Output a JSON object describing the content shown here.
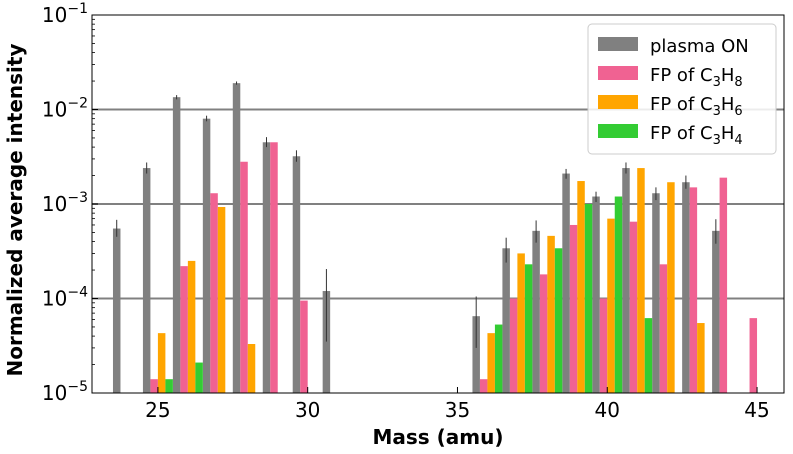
{
  "chart_data": {
    "type": "bar",
    "scale": "log",
    "xlabel": "Mass (amu)",
    "ylabel": "Normalized average intensity",
    "xlim": [
      22.8,
      45.9
    ],
    "ylim": [
      1e-05,
      0.1
    ],
    "x_ticks": [
      25,
      30,
      35,
      40,
      45
    ],
    "y_ticks": [
      {
        "value": 1e-05,
        "base": "10",
        "exp": "−5"
      },
      {
        "value": 0.0001,
        "base": "10",
        "exp": "−4"
      },
      {
        "value": 0.001,
        "base": "10",
        "exp": "−3"
      },
      {
        "value": 0.01,
        "base": "10",
        "exp": "−2"
      },
      {
        "value": 0.1,
        "base": "10",
        "exp": "−1"
      }
    ],
    "gridlines": [
      0.0001,
      0.001,
      0.01
    ],
    "bar_width": 0.25,
    "legend_position": "top-right",
    "series": [
      {
        "name": "plasma ON",
        "label_main": "plasma ON",
        "label_sub": "",
        "label_tail": "",
        "color": "#808080",
        "offset": -0.375,
        "points": [
          {
            "x": 24,
            "y": 0.00055,
            "err": [
              0.00045,
              0.00068
            ]
          },
          {
            "x": 25,
            "y": 0.0024,
            "err": [
              0.0021,
              0.00275
            ]
          },
          {
            "x": 26,
            "y": 0.0135,
            "err": [
              0.0128,
              0.0142
            ]
          },
          {
            "x": 27,
            "y": 0.008,
            "err": [
              0.0075,
              0.0086
            ]
          },
          {
            "x": 28,
            "y": 0.019,
            "err": [
              0.0183,
              0.0198
            ]
          },
          {
            "x": 29,
            "y": 0.0045,
            "err": [
              0.004,
              0.0051
            ]
          },
          {
            "x": 30,
            "y": 0.0032,
            "err": [
              0.0028,
              0.0037
            ]
          },
          {
            "x": 31,
            "y": 0.00012,
            "err": [
              3.5e-05,
              0.000205
            ]
          },
          {
            "x": 36,
            "y": 6.5e-05,
            "err": [
              3e-05,
              0.000105
            ]
          },
          {
            "x": 37,
            "y": 0.00034,
            "err": [
              0.00024,
              0.00044
            ]
          },
          {
            "x": 38,
            "y": 0.00052,
            "err": [
              0.00039,
              0.00067
            ]
          },
          {
            "x": 39,
            "y": 0.0021,
            "err": [
              0.00185,
              0.00235
            ]
          },
          {
            "x": 40,
            "y": 0.0012,
            "err": [
              0.00105,
              0.00135
            ]
          },
          {
            "x": 41,
            "y": 0.0024,
            "err": [
              0.0021,
              0.00275
            ]
          },
          {
            "x": 42,
            "y": 0.0013,
            "err": [
              0.0011,
              0.0015
            ]
          },
          {
            "x": 43,
            "y": 0.0017,
            "err": [
              0.00145,
              0.002
            ]
          },
          {
            "x": 44,
            "y": 0.00052,
            "err": [
              0.00038,
              0.00069
            ]
          }
        ]
      },
      {
        "name": "FP of C3H8",
        "label_main": "FP of C",
        "label_sub": "3",
        "label_tail": "H",
        "label_sub2": "8",
        "color": "#f06292",
        "offset": -0.125,
        "points": [
          {
            "x": 25,
            "y": 1.4e-05
          },
          {
            "x": 26,
            "y": 0.00022
          },
          {
            "x": 27,
            "y": 0.0013
          },
          {
            "x": 28,
            "y": 0.0028
          },
          {
            "x": 29,
            "y": 0.0045
          },
          {
            "x": 30,
            "y": 9.5e-05
          },
          {
            "x": 36,
            "y": 1.4e-05
          },
          {
            "x": 37,
            "y": 0.0001
          },
          {
            "x": 38,
            "y": 0.00018
          },
          {
            "x": 39,
            "y": 0.0006
          },
          {
            "x": 40,
            "y": 0.0001
          },
          {
            "x": 41,
            "y": 0.00065
          },
          {
            "x": 42,
            "y": 0.00023
          },
          {
            "x": 43,
            "y": 0.0015
          },
          {
            "x": 44,
            "y": 0.0019
          },
          {
            "x": 45,
            "y": 6.2e-05
          }
        ]
      },
      {
        "name": "FP of C3H6",
        "label_main": "FP of C",
        "label_sub": "3",
        "label_tail": "H",
        "label_sub2": "6",
        "color": "#ffa500",
        "offset": 0.125,
        "points": [
          {
            "x": 25,
            "y": 4.3e-05
          },
          {
            "x": 26,
            "y": 0.00025
          },
          {
            "x": 27,
            "y": 0.00093
          },
          {
            "x": 28,
            "y": 3.3e-05
          },
          {
            "x": 36,
            "y": 4.3e-05
          },
          {
            "x": 37,
            "y": 0.0003
          },
          {
            "x": 38,
            "y": 0.00046
          },
          {
            "x": 39,
            "y": 0.00175
          },
          {
            "x": 40,
            "y": 0.0007
          },
          {
            "x": 41,
            "y": 0.0024
          },
          {
            "x": 42,
            "y": 0.0017
          },
          {
            "x": 43,
            "y": 5.5e-05
          }
        ]
      },
      {
        "name": "FP of C3H4",
        "label_main": "FP of C",
        "label_sub": "3",
        "label_tail": "H",
        "label_sub2": "4",
        "color": "#33cc33",
        "offset": 0.375,
        "points": [
          {
            "x": 25,
            "y": 1.4e-05
          },
          {
            "x": 26,
            "y": 2.1e-05
          },
          {
            "x": 36,
            "y": 5.3e-05
          },
          {
            "x": 37,
            "y": 0.00023
          },
          {
            "x": 38,
            "y": 0.00034
          },
          {
            "x": 39,
            "y": 0.001
          },
          {
            "x": 40,
            "y": 0.0012
          },
          {
            "x": 41,
            "y": 6.2e-05
          }
        ]
      }
    ]
  }
}
